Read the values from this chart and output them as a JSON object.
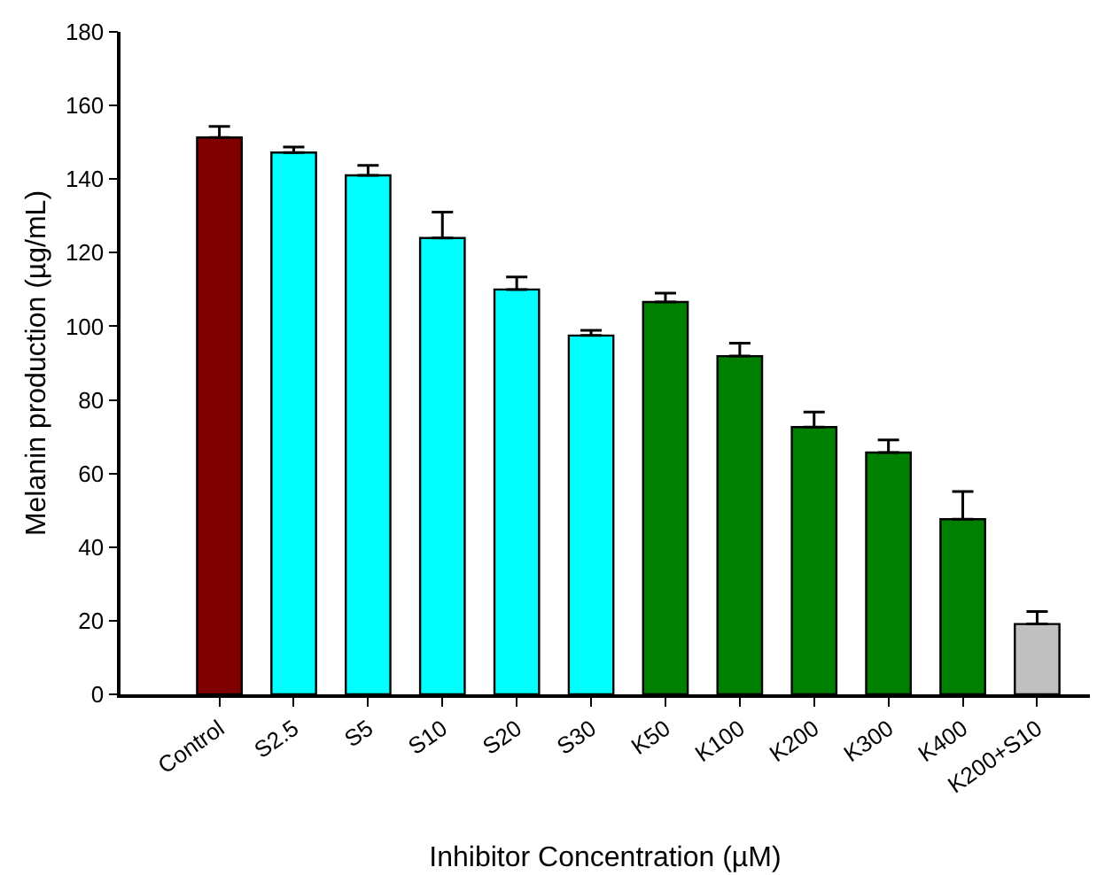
{
  "chart_data": {
    "type": "bar",
    "xlabel": "Inhibitor Concentration (µM)",
    "ylabel": "Melanin production (µg/mL)",
    "categories": [
      "Control",
      "S2.5",
      "S5",
      "S10",
      "S20",
      "S30",
      "K50",
      "K100",
      "K200",
      "K300",
      "K400",
      "K200+S10"
    ],
    "values": [
      151.3,
      147.2,
      141,
      124,
      110,
      97.5,
      106.6,
      91.9,
      72.6,
      65.7,
      47.6,
      19.1
    ],
    "errors": [
      [
        151.3,
        154.3
      ],
      [
        147.2,
        148.7
      ],
      [
        141,
        143.7
      ],
      [
        124,
        131
      ],
      [
        110,
        113.4
      ],
      [
        97.5,
        98.9
      ],
      [
        106.6,
        109
      ],
      [
        91.9,
        95.4
      ],
      [
        72.6,
        76.7
      ],
      [
        65.7,
        69.1
      ],
      [
        47.6,
        55.1
      ],
      [
        19.1,
        22.5
      ]
    ],
    "colors": [
      "#800000",
      "#00ffff",
      "#00ffff",
      "#00ffff",
      "#00ffff",
      "#00ffff",
      "#008000",
      "#008000",
      "#008000",
      "#008000",
      "#008000",
      "#c0c0c0"
    ],
    "ylim": [
      0,
      180
    ],
    "yticks": [
      0,
      20,
      40,
      60,
      80,
      100,
      120,
      140,
      160,
      180
    ],
    "grid": false
  }
}
